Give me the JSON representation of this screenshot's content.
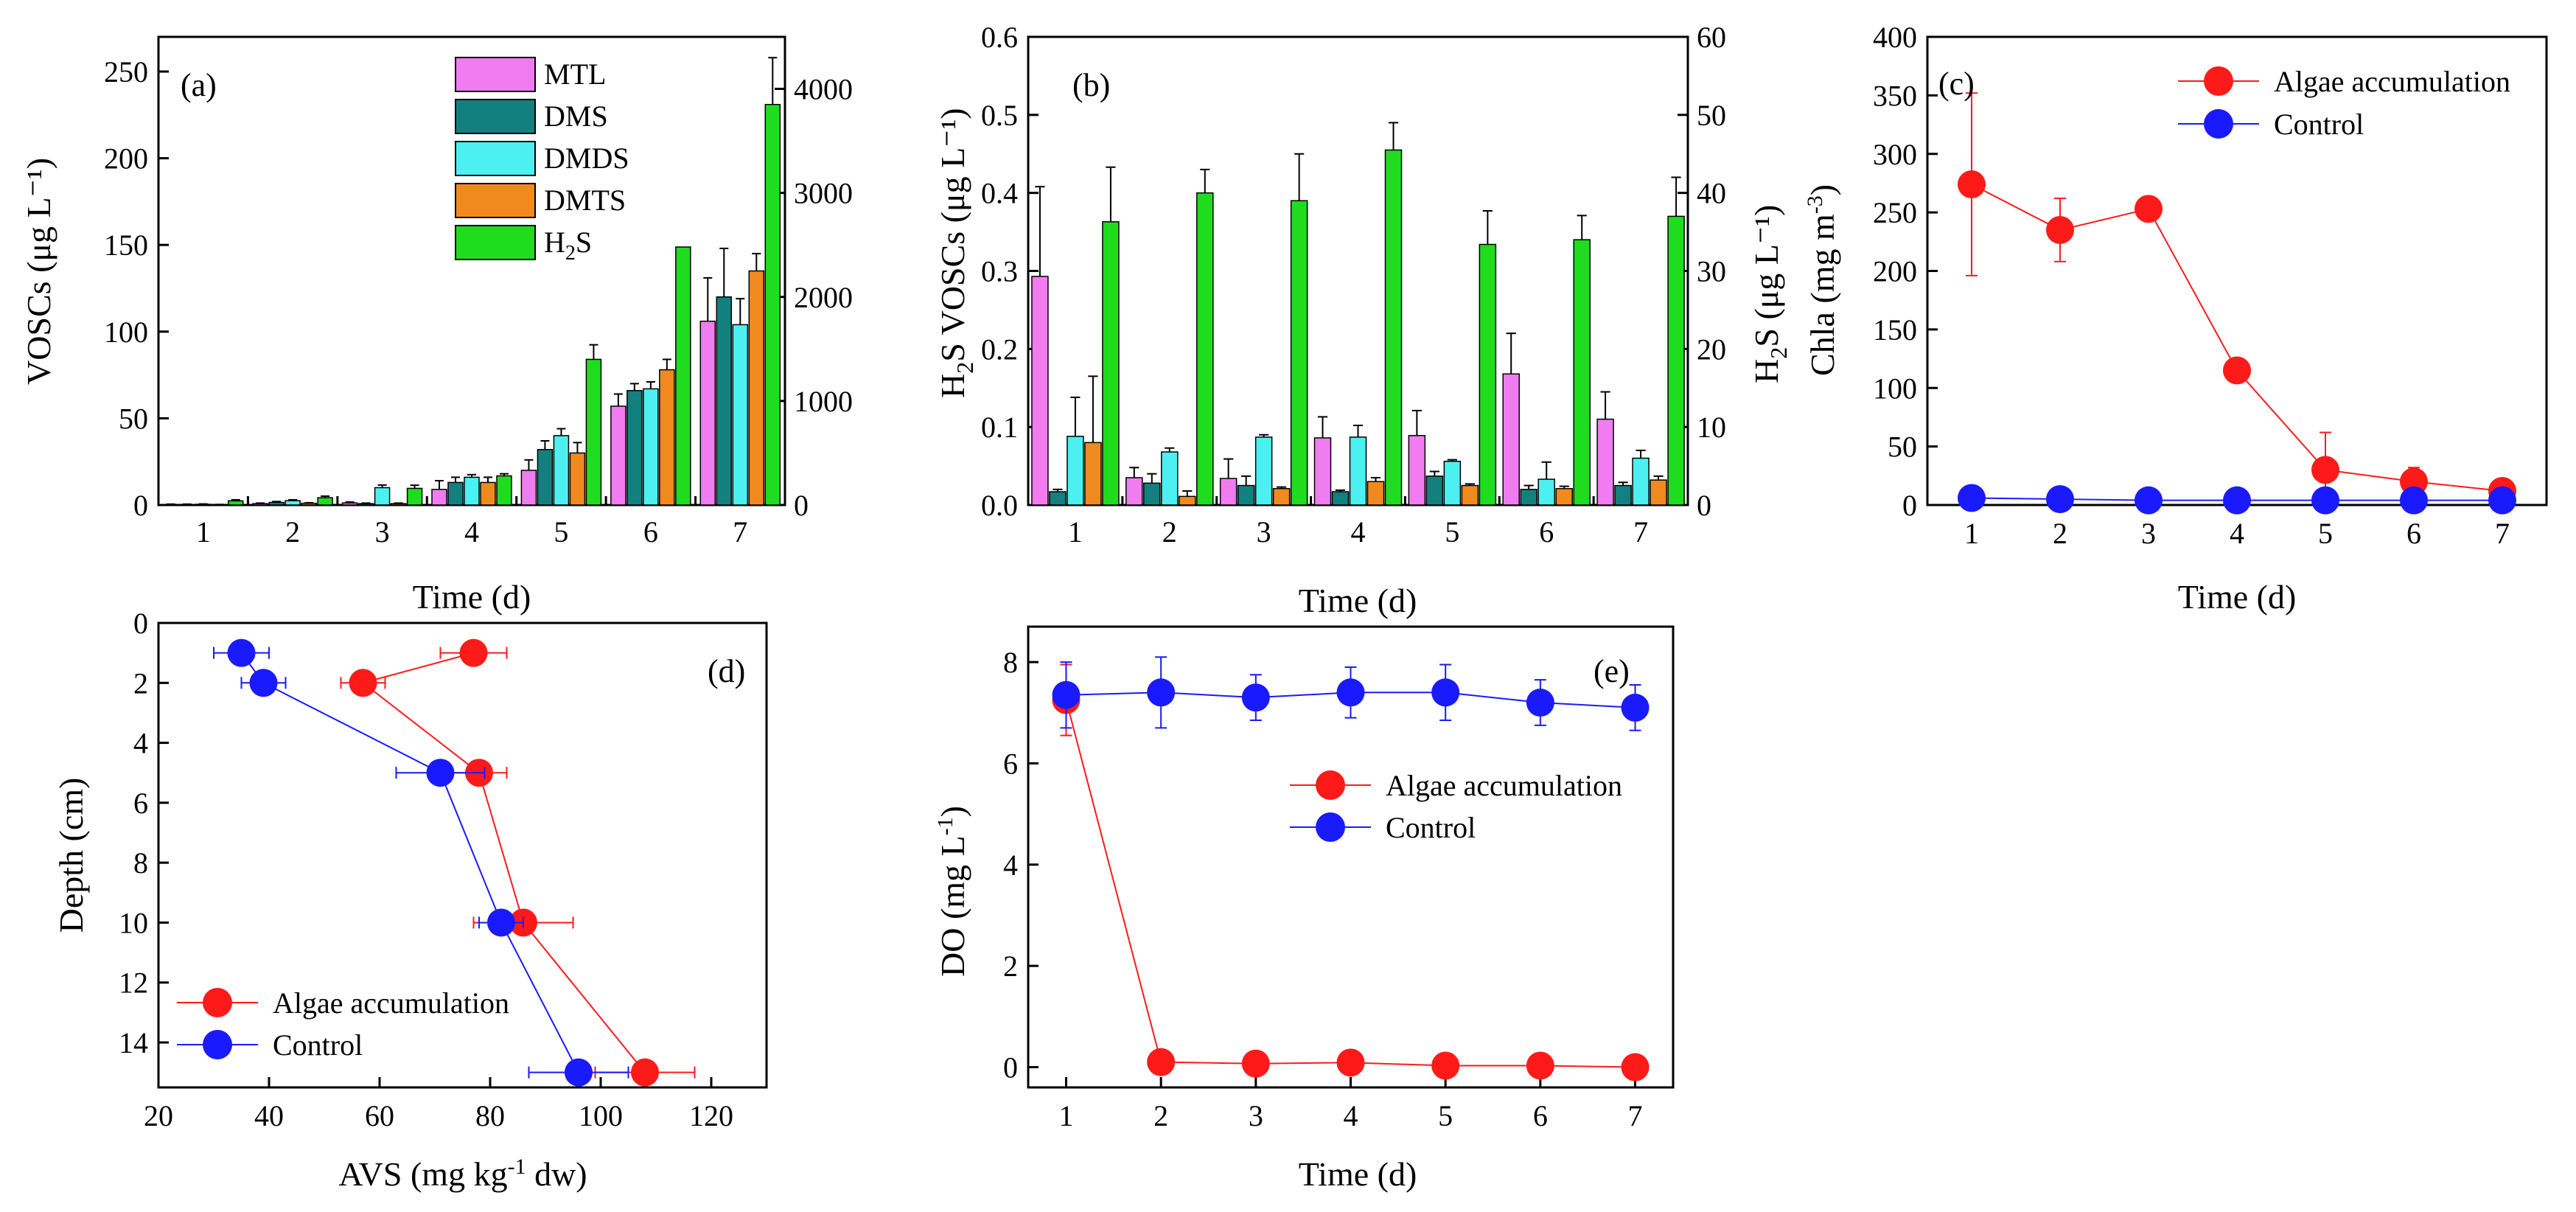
{
  "figure": {
    "description_free": true
  },
  "chart_data": [
    {
      "id": "a",
      "type": "bar",
      "panel_label": "(a)",
      "title": "",
      "xlabel": "Time (d)",
      "ylabel": "VOSCs (μg L⁻¹)",
      "y2label": "",
      "categories": [
        "1",
        "2",
        "3",
        "4",
        "5",
        "6",
        "7"
      ],
      "ylim": [
        0,
        270
      ],
      "yticks": [
        0,
        50,
        100,
        150,
        200,
        250
      ],
      "y2lim": [
        0,
        4500
      ],
      "y2ticks": [
        0,
        1000,
        2000,
        3000,
        4000
      ],
      "legend": "top-center",
      "series": [
        {
          "name": "MTL",
          "legend_label": "MTL",
          "color": "#f07cf0",
          "axis": "left",
          "values": [
            0.3,
            0.8,
            1.2,
            9,
            20,
            57,
            106
          ],
          "errors": [
            0.2,
            0.3,
            0.5,
            5,
            6,
            7,
            25
          ]
        },
        {
          "name": "DMS",
          "legend_label": "DMS",
          "color": "#138080",
          "axis": "left",
          "values": [
            0.3,
            1.5,
            0.8,
            13,
            32,
            66,
            120
          ],
          "errors": [
            0.2,
            0.5,
            0.3,
            3,
            5,
            4,
            28
          ]
        },
        {
          "name": "DMDS",
          "legend_label": "DMDS",
          "color": "#4cf0f0",
          "axis": "left",
          "values": [
            0.4,
            2.5,
            10,
            16,
            40,
            67,
            104
          ],
          "errors": [
            0.2,
            0.5,
            1.5,
            1.5,
            4,
            4,
            15
          ]
        },
        {
          "name": "DMTS",
          "legend_label": "DMTS",
          "color": "#f08a1e",
          "axis": "left",
          "values": [
            0.2,
            1.0,
            0.8,
            13,
            30,
            78,
            135
          ],
          "errors": [
            0.1,
            0.3,
            0.3,
            3,
            6,
            6,
            10
          ]
        },
        {
          "name": "H2S",
          "legend_label": "H",
          "legend_sub": "2",
          "legend_suffix": "S",
          "color": "#1fdc1f",
          "axis": "right",
          "values": [
            40,
            70,
            160,
            280,
            1400,
            2480,
            3850
          ],
          "errors": [
            10,
            15,
            30,
            20,
            140,
            0,
            450
          ]
        }
      ]
    },
    {
      "id": "b",
      "type": "bar",
      "panel_label": "(b)",
      "title": "",
      "xlabel": "Time (d)",
      "ylabel_main": "H",
      "ylabel_sub": "2",
      "ylabel_rest": "S VOSCs (μg L⁻¹)",
      "y2label_main": "H",
      "y2label_sub": "2",
      "y2label_rest": "S (μg L⁻¹)",
      "categories": [
        "1",
        "2",
        "3",
        "4",
        "5",
        "6",
        "7"
      ],
      "ylim": [
        0,
        0.6
      ],
      "yticks": [
        0.0,
        0.1,
        0.2,
        0.3,
        0.4,
        0.5,
        0.6
      ],
      "ytick_labels": [
        "0.0",
        "0.1",
        "0.2",
        "0.3",
        "0.4",
        "0.5",
        "0.6"
      ],
      "y2lim": [
        0,
        60
      ],
      "y2ticks": [
        0,
        10,
        20,
        30,
        40,
        50,
        60
      ],
      "series": [
        {
          "name": "MTL",
          "color": "#f07cf0",
          "axis": "left",
          "values": [
            0.293,
            0.035,
            0.034,
            0.086,
            0.089,
            0.168,
            0.11
          ],
          "errors": [
            0.115,
            0.013,
            0.025,
            0.027,
            0.032,
            0.052,
            0.035
          ]
        },
        {
          "name": "DMS",
          "color": "#138080",
          "axis": "left",
          "values": [
            0.017,
            0.028,
            0.025,
            0.017,
            0.037,
            0.02,
            0.025
          ],
          "errors": [
            0.003,
            0.012,
            0.012,
            0.002,
            0.006,
            0.005,
            0.004
          ]
        },
        {
          "name": "DMDS",
          "color": "#4cf0f0",
          "axis": "left",
          "values": [
            0.088,
            0.068,
            0.087,
            0.087,
            0.056,
            0.033,
            0.06
          ],
          "errors": [
            0.05,
            0.005,
            0.003,
            0.015,
            0.002,
            0.022,
            0.01
          ]
        },
        {
          "name": "DMTS",
          "color": "#f08a1e",
          "axis": "left",
          "values": [
            0.08,
            0.011,
            0.021,
            0.03,
            0.025,
            0.021,
            0.032
          ],
          "errors": [
            0.085,
            0.007,
            0.002,
            0.005,
            0.002,
            0.003,
            0.005
          ]
        },
        {
          "name": "H2S",
          "color": "#1fdc1f",
          "axis": "right",
          "values": [
            36.3,
            40.0,
            39.0,
            45.5,
            33.4,
            34.0,
            37.0
          ],
          "errors": [
            7,
            3,
            6,
            3.5,
            4.3,
            3.1,
            5
          ]
        }
      ]
    },
    {
      "id": "c",
      "type": "line",
      "panel_label": "(c)",
      "title": "",
      "xlabel": "Time (d)",
      "ylabel_main": "Chla (mg m",
      "ylabel_sup": "-3",
      "ylabel_end": ")",
      "x": [
        1,
        2,
        3,
        4,
        5,
        6,
        7
      ],
      "xlim": [
        0.5,
        7.5
      ],
      "xticks": [
        1,
        2,
        3,
        4,
        5,
        6,
        7
      ],
      "ylim": [
        0,
        400
      ],
      "yticks": [
        0,
        50,
        100,
        150,
        200,
        250,
        300,
        350,
        400
      ],
      "legend": "top-right",
      "series": [
        {
          "name": "Algae accumulation",
          "color": "#ff1a1a",
          "values": [
            274,
            235,
            253,
            115,
            30,
            20,
            12
          ],
          "errors": [
            78,
            27,
            8,
            5,
            32,
            12,
            5
          ]
        },
        {
          "name": "Control",
          "color": "#1a1aff",
          "values": [
            6,
            5,
            4,
            4,
            4,
            4,
            4
          ],
          "errors": [
            1,
            1,
            1,
            1,
            1,
            1,
            1
          ]
        }
      ]
    },
    {
      "id": "d",
      "type": "line",
      "panel_label": "(d)",
      "title": "",
      "xlabel_main": "AVS (mg kg",
      "xlabel_sup": "-1",
      "xlabel_end": " dw)",
      "ylabel": "Depth (cm)",
      "xlim": [
        20,
        130
      ],
      "xticks": [
        20,
        40,
        60,
        80,
        100,
        120
      ],
      "ylim": [
        0,
        15.5
      ],
      "yticks": [
        0,
        2,
        4,
        6,
        8,
        10,
        12,
        14
      ],
      "y_inverted": true,
      "legend": "bottom-left",
      "series": [
        {
          "name": "Algae accumulation",
          "color": "#ff1a1a",
          "x": [
            77,
            57,
            78,
            86,
            108
          ],
          "y": [
            1,
            2,
            5,
            10,
            15
          ],
          "xerrors": [
            6,
            4,
            5,
            9,
            9
          ]
        },
        {
          "name": "Control",
          "color": "#1a1aff",
          "x": [
            35,
            39,
            71,
            82,
            96
          ],
          "y": [
            1,
            2,
            5,
            10,
            15
          ],
          "xerrors": [
            5,
            4,
            8,
            4,
            9
          ]
        }
      ]
    },
    {
      "id": "e",
      "type": "line",
      "panel_label": "(e)",
      "title": "",
      "xlabel": "Time (d)",
      "ylabel_main": "DO (mg L",
      "ylabel_sup": "-1",
      "ylabel_end": ")",
      "x": [
        1,
        2,
        3,
        4,
        5,
        6,
        7
      ],
      "xlim": [
        0.6,
        7.4
      ],
      "xticks": [
        1,
        2,
        3,
        4,
        5,
        6,
        7
      ],
      "ylim": [
        -0.4,
        8.7
      ],
      "yticks": [
        0,
        2,
        4,
        6,
        8
      ],
      "legend": "center-right",
      "series": [
        {
          "name": "Algae accumulation",
          "color": "#ff1a1a",
          "values": [
            7.25,
            0.1,
            0.07,
            0.09,
            0.03,
            0.03,
            0.0
          ],
          "errors": [
            0.7,
            0.05,
            0.05,
            0.05,
            0.05,
            0.05,
            0.05
          ]
        },
        {
          "name": "Control",
          "color": "#1a1aff",
          "values": [
            7.35,
            7.4,
            7.3,
            7.4,
            7.4,
            7.2,
            7.1
          ],
          "errors": [
            0.65,
            0.7,
            0.45,
            0.5,
            0.55,
            0.45,
            0.45
          ]
        }
      ]
    }
  ]
}
